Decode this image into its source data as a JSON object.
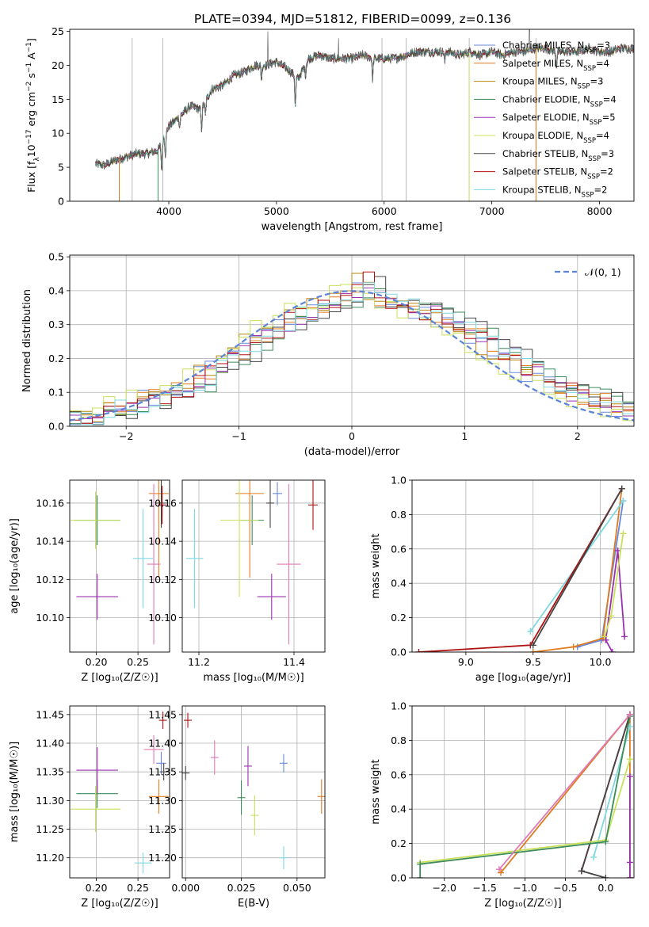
{
  "figure": {
    "title": "PLATE=0394, MJD=51812, FIBERID=0099, z=0.136"
  },
  "chart_data": [
    {
      "id": "spectrum",
      "type": "line",
      "xlabel": "wavelength [Angstrom, rest frame]",
      "ylabel_parts": [
        "Flux [f",
        "λ",
        "10",
        "−17",
        " erg cm",
        "−2",
        " s",
        "−1",
        " A",
        "−1",
        "]"
      ],
      "xlim": [
        3080,
        8320
      ],
      "ylim": [
        0,
        25.3
      ],
      "xticks": [
        4000,
        5000,
        6000,
        7000,
        8000
      ],
      "xtick_labels": [
        "4000",
        "5000",
        "6000",
        "7000",
        "8000"
      ],
      "yticks": [
        0,
        5,
        10,
        15,
        20,
        25
      ],
      "ytick_labels": [
        "0",
        "5",
        "10",
        "15",
        "20",
        "25"
      ],
      "grid": false,
      "legend_position": "right",
      "continuum_x": [
        3320,
        3400,
        3500,
        3600,
        3700,
        3800,
        3900,
        4000,
        4100,
        4200,
        4300,
        4400,
        4500,
        4600,
        4700,
        4800,
        4900,
        5000,
        5100,
        5200,
        5300,
        5400,
        5500,
        5600,
        5700,
        5800,
        5900,
        6000,
        6100,
        6200,
        6300,
        6400,
        6500,
        6600,
        6700,
        6800,
        6900,
        7000,
        7100,
        7200,
        7300,
        7400,
        7500,
        7600,
        7700,
        7800,
        7900,
        8000,
        8100,
        8200
      ],
      "continuum_y": [
        5.5,
        5.3,
        6.0,
        6.5,
        7.0,
        7.0,
        7.5,
        11.0,
        12.5,
        14.0,
        13.5,
        16.5,
        17.0,
        18.5,
        19.0,
        20.0,
        20.0,
        20.5,
        19.5,
        18.0,
        21.0,
        21.5,
        21.0,
        21.0,
        21.0,
        21.5,
        21.0,
        21.0,
        21.0,
        21.5,
        22.0,
        22.0,
        22.0,
        22.0,
        21.5,
        22.0,
        21.5,
        22.0,
        21.5,
        22.0,
        22.0,
        22.5,
        22.5,
        22.0,
        22.0,
        22.0,
        22.5,
        22.0,
        22.0,
        22.5
      ],
      "absorption_lines": [
        {
          "x": 3934,
          "depth": 4.0
        },
        {
          "x": 3969,
          "depth": 3.0
        },
        {
          "x": 4101,
          "depth": 1.5
        },
        {
          "x": 4304,
          "depth": 3.0
        },
        {
          "x": 4340,
          "depth": 2.0
        },
        {
          "x": 4861,
          "depth": 2.0
        },
        {
          "x": 5175,
          "depth": 4.5
        },
        {
          "x": 5270,
          "depth": 1.5
        },
        {
          "x": 5893,
          "depth": 3.0
        },
        {
          "x": 6563,
          "depth": 1.5
        },
        {
          "x": 7600,
          "depth": 2.0
        }
      ],
      "sky_spikes": [
        {
          "x": 4920,
          "y": 25.0
        },
        {
          "x": 5577,
          "y": 24.0
        },
        {
          "x": 7350,
          "y": 25.3
        }
      ],
      "masked_gaps_x": [
        3660,
        3945,
        5980,
        6205,
        6790,
        7410
      ],
      "model_cutoffs": [
        {
          "series": 1,
          "x": 3540
        },
        {
          "series": 3,
          "x": 3900
        },
        {
          "series": 5,
          "x": 6790
        },
        {
          "series": 1,
          "x": 7410
        }
      ],
      "series": [
        {
          "name": "Chabrier MILES, ",
          "nssp": "3",
          "color": "#6688dd"
        },
        {
          "name": "Salpeter MILES, ",
          "nssp": "4",
          "color": "#e07b1f"
        },
        {
          "name": "Kroupa MILES, ",
          "nssp": "3",
          "color": "#b8860b"
        },
        {
          "name": "Chabrier ELODIE, ",
          "nssp": "4",
          "color": "#3c8c5a"
        },
        {
          "name": "Salpeter ELODIE, ",
          "nssp": "5",
          "color": "#9b30b0"
        },
        {
          "name": "Kroupa ELODIE, ",
          "nssp": "4",
          "color": "#c8e05a"
        },
        {
          "name": "Chabrier STELIB, ",
          "nssp": "3",
          "color": "#444444"
        },
        {
          "name": "Salpeter STELIB, ",
          "nssp": "2",
          "color": "#b01010"
        },
        {
          "name": "Kroupa STELIB, ",
          "nssp": "2",
          "color": "#7fd8e0"
        }
      ]
    },
    {
      "id": "residuals",
      "type": "line",
      "xlabel": "(data-model)/error",
      "ylabel": "Normed distribution",
      "xlim": [
        -2.5,
        2.5
      ],
      "ylim": [
        0,
        0.505
      ],
      "xticks": [
        -2,
        -1,
        0,
        1,
        2
      ],
      "xtick_labels": [
        "−2",
        "−1",
        "0",
        "1",
        "2"
      ],
      "yticks": [
        0.0,
        0.1,
        0.2,
        0.3,
        0.4,
        0.5
      ],
      "ytick_labels": [
        "0.0",
        "0.1",
        "0.2",
        "0.3",
        "0.4",
        "0.5"
      ],
      "grid": true,
      "legend_position": "top-right",
      "gaussian_label": "𝒩(0, 1)",
      "gaussian_color": "#5b84d6",
      "bin_width": 0.1,
      "hist_base_x": [
        -2.5,
        -2.4,
        -2.3,
        -2.2,
        -2.1,
        -2.0,
        -1.9,
        -1.8,
        -1.7,
        -1.6,
        -1.5,
        -1.4,
        -1.3,
        -1.2,
        -1.1,
        -1.0,
        -0.9,
        -0.8,
        -0.7,
        -0.6,
        -0.5,
        -0.4,
        -0.3,
        -0.2,
        -0.1,
        0.0,
        0.1,
        0.2,
        0.3,
        0.4,
        0.5,
        0.6,
        0.7,
        0.8,
        0.9,
        1.0,
        1.1,
        1.2,
        1.3,
        1.4,
        1.5,
        1.6,
        1.7,
        1.8,
        1.9,
        2.0,
        2.1,
        2.2,
        2.3,
        2.4
      ],
      "hist_base_y": [
        0.02,
        0.03,
        0.04,
        0.05,
        0.06,
        0.07,
        0.08,
        0.09,
        0.1,
        0.11,
        0.13,
        0.15,
        0.17,
        0.19,
        0.22,
        0.25,
        0.27,
        0.29,
        0.31,
        0.33,
        0.34,
        0.36,
        0.37,
        0.38,
        0.39,
        0.43,
        0.38,
        0.37,
        0.36,
        0.35,
        0.34,
        0.33,
        0.32,
        0.3,
        0.28,
        0.26,
        0.24,
        0.22,
        0.2,
        0.18,
        0.16,
        0.14,
        0.12,
        0.1,
        0.09,
        0.08,
        0.07,
        0.06,
        0.05,
        0.04
      ],
      "hist_shifts": [
        0.0,
        0.12,
        0.05,
        0.18,
        0.08,
        -0.1,
        0.22,
        0.15,
        0.1
      ]
    },
    {
      "id": "age_vs_Z",
      "type": "scatter",
      "xlabel": "Z [log₁₀(Z/Z☉)]",
      "ylabel": "age  [log₁₀(age/yr)]",
      "xlim": [
        0.168,
        0.288
      ],
      "ylim": [
        10.082,
        10.172
      ],
      "xticks": [
        0.2,
        0.25
      ],
      "xtick_labels": [
        "0.20",
        "0.25"
      ],
      "yticks": [
        10.1,
        10.12,
        10.14,
        10.16
      ],
      "ytick_labels": [
        "10.10",
        "10.12",
        "10.14",
        "10.16"
      ],
      "grid": true,
      "points": [
        {
          "x": 0.279,
          "y": 10.159,
          "ex": 0.004,
          "ey": 0.006,
          "s": 0
        },
        {
          "x": 0.275,
          "y": 10.165,
          "ex": 0.012,
          "ey": 0.044,
          "s": 1
        },
        {
          "x": 0.201,
          "y": 10.151,
          "ex": 0.028,
          "ey": 0.013,
          "s": 3
        },
        {
          "x": 0.201,
          "y": 10.111,
          "ex": 0.025,
          "ey": 0.012,
          "s": 4
        },
        {
          "x": 0.199,
          "y": 10.151,
          "ex": 0.03,
          "ey": 0.015,
          "s": 5
        },
        {
          "x": 0.278,
          "y": 10.16,
          "ex": 0.006,
          "ey": 0.013,
          "s": 6
        },
        {
          "x": 0.279,
          "y": 10.159,
          "ex": 0.003,
          "ey": 0.01,
          "s": 7
        },
        {
          "x": 0.256,
          "y": 10.131,
          "ex": 0.012,
          "ey": 0.026,
          "s": 8
        },
        {
          "x": 0.269,
          "y": 10.128,
          "ex": 0.008,
          "ey": 0.042,
          "s": 9
        }
      ]
    },
    {
      "id": "age_vs_mass",
      "type": "scatter",
      "xlabel": "mass [log₁₀(M/M☉)]",
      "ylabel": "",
      "xlim": [
        11.165,
        11.465
      ],
      "ylim": [
        10.082,
        10.172
      ],
      "xticks": [
        11.2,
        11.4
      ],
      "xtick_labels": [
        "11.2",
        "11.4"
      ],
      "yticks": [
        10.1,
        10.12,
        10.14,
        10.16
      ],
      "ytick_labels": [
        "10.10",
        "10.12",
        "10.14",
        "10.16"
      ],
      "grid": true,
      "points": [
        {
          "x": 11.365,
          "y": 10.165,
          "ex": 0.01,
          "ey": 0.006,
          "s": 0
        },
        {
          "x": 11.307,
          "y": 10.165,
          "ex": 0.03,
          "ey": 0.044,
          "s": 1
        },
        {
          "x": 11.312,
          "y": 10.151,
          "ex": 0.025,
          "ey": 0.013,
          "s": 3
        },
        {
          "x": 11.353,
          "y": 10.111,
          "ex": 0.03,
          "ey": 0.012,
          "s": 4
        },
        {
          "x": 11.285,
          "y": 10.151,
          "ex": 0.04,
          "ey": 0.04,
          "s": 5
        },
        {
          "x": 11.35,
          "y": 10.16,
          "ex": 0.006,
          "ey": 0.013,
          "s": 6
        },
        {
          "x": 11.44,
          "y": 10.159,
          "ex": 0.01,
          "ey": 0.013,
          "s": 7
        },
        {
          "x": 11.191,
          "y": 10.131,
          "ex": 0.018,
          "ey": 0.026,
          "s": 8
        },
        {
          "x": 11.389,
          "y": 10.128,
          "ex": 0.025,
          "ey": 0.042,
          "s": 9
        }
      ]
    },
    {
      "id": "weight_vs_age",
      "type": "line",
      "xlabel": "age  [log₁₀(age/yr)]",
      "ylabel": "mass weight",
      "xlim": [
        8.6,
        10.25
      ],
      "ylim": [
        0,
        1.0
      ],
      "xticks": [
        9.0,
        9.5,
        10.0
      ],
      "xtick_labels": [
        "9.0",
        "9.5",
        "10.0"
      ],
      "yticks": [
        0.0,
        0.2,
        0.4,
        0.6,
        0.8,
        1.0
      ],
      "ytick_labels": [
        "0.0",
        "0.2",
        "0.4",
        "0.6",
        "0.8",
        "1.0"
      ],
      "grid": true,
      "series": [
        {
          "s": 0,
          "pts": [
            [
              9.83,
              0.03
            ],
            [
              10.01,
              0.07
            ],
            [
              10.17,
              0.88
            ]
          ]
        },
        {
          "s": 1,
          "pts": [
            [
              9.5,
              0.0
            ],
            [
              9.8,
              0.03
            ],
            [
              10.02,
              0.08
            ],
            [
              10.16,
              0.95
            ]
          ]
        },
        {
          "s": 4,
          "pts": [
            [
              10.09,
              0.0
            ],
            [
              10.04,
              0.07
            ],
            [
              10.13,
              0.59
            ],
            [
              10.18,
              0.09
            ]
          ]
        },
        {
          "s": 5,
          "pts": [
            [
              10.03,
              0.09
            ],
            [
              10.08,
              0.21
            ],
            [
              10.17,
              0.69
            ]
          ]
        },
        {
          "s": 8,
          "pts": [
            [
              9.48,
              0.12
            ],
            [
              10.17,
              0.88
            ]
          ]
        },
        {
          "s": 7,
          "pts": [
            [
              8.65,
              0.0
            ],
            [
              9.48,
              0.04
            ],
            [
              10.16,
              0.95
            ]
          ]
        },
        {
          "s": 6,
          "pts": [
            [
              9.5,
              0.04
            ],
            [
              10.16,
              0.95
            ]
          ]
        }
      ]
    },
    {
      "id": "mass_vs_Z",
      "type": "scatter",
      "xlabel": "Z [log₁₀(Z/Z☉)]",
      "ylabel": "mass [log₁₀(M/M☉)]",
      "xlim": [
        0.168,
        0.288
      ],
      "ylim": [
        11.165,
        11.465
      ],
      "xticks": [
        0.2,
        0.25
      ],
      "xtick_labels": [
        "0.20",
        "0.25"
      ],
      "yticks": [
        11.2,
        11.25,
        11.3,
        11.35,
        11.4,
        11.45
      ],
      "ytick_labels": [
        "11.20",
        "11.25",
        "11.30",
        "11.35",
        "11.40",
        "11.45"
      ],
      "grid": true,
      "points": [
        {
          "x": 0.278,
          "y": 11.365,
          "ex": 0.006,
          "ey": 0.02,
          "s": 0
        },
        {
          "x": 0.275,
          "y": 11.307,
          "ex": 0.012,
          "ey": 0.03,
          "s": 1
        },
        {
          "x": 0.201,
          "y": 11.312,
          "ex": 0.025,
          "ey": 0.025,
          "s": 3
        },
        {
          "x": 0.201,
          "y": 11.353,
          "ex": 0.025,
          "ey": 0.04,
          "s": 4
        },
        {
          "x": 0.199,
          "y": 11.285,
          "ex": 0.03,
          "ey": 0.04,
          "s": 5
        },
        {
          "x": 0.281,
          "y": 11.35,
          "ex": 0.003,
          "ey": 0.015,
          "s": 6
        },
        {
          "x": 0.28,
          "y": 11.44,
          "ex": 0.004,
          "ey": 0.015,
          "s": 7
        },
        {
          "x": 0.256,
          "y": 11.191,
          "ex": 0.01,
          "ey": 0.018,
          "s": 8
        },
        {
          "x": 0.269,
          "y": 11.389,
          "ex": 0.012,
          "ey": 0.025,
          "s": 9
        }
      ]
    },
    {
      "id": "mass_vs_ebv",
      "type": "scatter",
      "xlabel": "E(B-V)",
      "ylabel": "",
      "xlim": [
        -0.0015,
        0.0625
      ],
      "ylim": [
        11.165,
        11.465
      ],
      "xticks": [
        0.0,
        0.025,
        0.05
      ],
      "xtick_labels": [
        "0.000",
        "0.025",
        "0.050"
      ],
      "yticks": [
        11.2,
        11.25,
        11.3,
        11.35,
        11.4,
        11.45
      ],
      "ytick_labels": [
        "11.20",
        "11.25",
        "11.30",
        "11.35",
        "11.40",
        "11.45"
      ],
      "grid": true,
      "points": [
        {
          "x": 0.044,
          "y": 11.365,
          "ex": 0.0,
          "ey": 0.016,
          "s": 0
        },
        {
          "x": 0.061,
          "y": 11.307,
          "ex": 0.0,
          "ey": 0.03,
          "s": 1
        },
        {
          "x": 0.025,
          "y": 11.305,
          "ex": 0.0,
          "ey": 0.03,
          "s": 3
        },
        {
          "x": 0.028,
          "y": 11.36,
          "ex": 0.0,
          "ey": 0.035,
          "s": 4
        },
        {
          "x": 0.031,
          "y": 11.274,
          "ex": 0.0,
          "ey": 0.035,
          "s": 5
        },
        {
          "x": 0.0,
          "y": 11.348,
          "ex": 0.0,
          "ey": 0.012,
          "s": 6
        },
        {
          "x": 0.001,
          "y": 11.44,
          "ex": 0.0,
          "ey": 0.013,
          "s": 7
        },
        {
          "x": 0.044,
          "y": 11.2,
          "ex": 0.0,
          "ey": 0.02,
          "s": 8
        },
        {
          "x": 0.013,
          "y": 11.375,
          "ex": 0.0,
          "ey": 0.03,
          "s": 9
        }
      ]
    },
    {
      "id": "weight_vs_Z",
      "type": "line",
      "xlabel": "Z [log₁₀(Z/Z☉)]",
      "ylabel": "mass weight",
      "xlim": [
        -2.4,
        0.35
      ],
      "ylim": [
        0,
        1.0
      ],
      "xticks": [
        -2.0,
        -1.5,
        -1.0,
        -0.5,
        0.0
      ],
      "xtick_labels": [
        "−2.0",
        "−1.5",
        "−1.0",
        "−0.5",
        "0.0"
      ],
      "yticks": [
        0.0,
        0.2,
        0.4,
        0.6,
        0.8,
        1.0
      ],
      "ytick_labels": [
        "0.0",
        "0.2",
        "0.4",
        "0.6",
        "0.8",
        "1.0"
      ],
      "grid": true,
      "series": [
        {
          "s": 1,
          "pts": [
            [
              -1.3,
              0.03
            ],
            [
              0.3,
              0.95
            ],
            [
              0.3,
              0.0
            ]
          ]
        },
        {
          "s": 8,
          "pts": [
            [
              -0.15,
              0.12
            ],
            [
              0.3,
              0.88
            ]
          ]
        },
        {
          "s": 7,
          "pts": [
            [
              -0.3,
              0.04
            ],
            [
              0.3,
              0.95
            ]
          ]
        },
        {
          "s": 6,
          "pts": [
            [
              0.0,
              0.0
            ],
            [
              -0.3,
              0.04
            ],
            [
              0.3,
              0.95
            ]
          ]
        },
        {
          "s": 4,
          "pts": [
            [
              0.3,
              0.59
            ],
            [
              0.3,
              0.09
            ],
            [
              0.3,
              0.0
            ]
          ]
        },
        {
          "s": 5,
          "pts": [
            [
              -2.3,
              0.09
            ],
            [
              0.0,
              0.22
            ],
            [
              0.3,
              0.69
            ]
          ]
        },
        {
          "s": 3,
          "pts": [
            [
              -2.3,
              0.0
            ],
            [
              -2.3,
              0.08
            ],
            [
              0.0,
              0.21
            ],
            [
              0.3,
              0.94
            ]
          ]
        },
        {
          "s": 9,
          "pts": [
            [
              -1.32,
              0.05
            ],
            [
              0.3,
              0.95
            ]
          ]
        }
      ]
    }
  ],
  "scatter_colors": [
    "#6688dd",
    "#e07b1f",
    "#b8860b",
    "#3c8c5a",
    "#9b30b0",
    "#c8e05a",
    "#444444",
    "#b01010",
    "#7fd8e0",
    "#e07ab5"
  ]
}
